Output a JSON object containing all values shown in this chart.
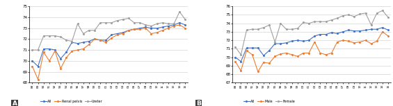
{
  "years": [
    "88",
    "89",
    "90",
    "91",
    "92",
    "93",
    "94",
    "95",
    "96",
    "97",
    "98",
    "99",
    "00",
    "01",
    "02",
    "03",
    "04",
    "05",
    "06",
    "07",
    "08",
    "09",
    "10",
    "11",
    "12",
    "13",
    "14",
    "15"
  ],
  "chart_A": {
    "All": [
      70.0,
      69.5,
      71.1,
      71.1,
      71.0,
      70.2,
      70.8,
      71.7,
      71.6,
      71.7,
      71.8,
      72.0,
      71.9,
      71.9,
      72.4,
      72.5,
      72.6,
      72.8,
      72.9,
      73.0,
      73.1,
      73.0,
      73.0,
      73.1,
      73.2,
      73.3,
      73.5,
      73.3
    ],
    "Renal_pelvis": [
      69.5,
      68.3,
      70.8,
      70.0,
      70.9,
      69.3,
      70.3,
      70.9,
      71.0,
      71.1,
      71.5,
      72.0,
      71.9,
      71.7,
      72.1,
      72.4,
      72.5,
      72.8,
      72.9,
      72.9,
      73.0,
      72.5,
      72.6,
      72.8,
      73.0,
      73.2,
      73.3,
      73.0
    ],
    "Ureter": [
      71.0,
      71.0,
      72.3,
      72.3,
      72.3,
      72.2,
      71.9,
      71.8,
      73.4,
      72.5,
      72.8,
      72.8,
      73.5,
      73.5,
      73.5,
      73.7,
      73.8,
      73.9,
      73.5,
      73.5,
      73.3,
      73.2,
      73.4,
      73.5,
      73.4,
      73.4,
      74.5,
      73.8
    ]
  },
  "chart_B": {
    "All": [
      70.0,
      69.5,
      71.1,
      71.1,
      71.1,
      70.2,
      70.8,
      71.6,
      71.6,
      71.7,
      71.9,
      72.0,
      71.9,
      72.0,
      72.5,
      72.7,
      72.7,
      72.9,
      72.8,
      73.0,
      73.2,
      73.1,
      73.1,
      73.2,
      73.3,
      73.3,
      73.5,
      73.2
    ],
    "Male": [
      69.5,
      68.4,
      70.8,
      70.3,
      68.3,
      69.4,
      69.3,
      70.1,
      70.4,
      70.5,
      70.3,
      70.1,
      70.5,
      70.5,
      71.8,
      70.5,
      70.3,
      70.5,
      71.8,
      72.0,
      71.9,
      71.7,
      71.8,
      72.0,
      71.6,
      71.9,
      73.0,
      72.5
    ],
    "Female": [
      71.2,
      70.3,
      73.2,
      73.3,
      73.3,
      73.5,
      73.8,
      71.8,
      74.0,
      73.3,
      73.3,
      73.4,
      74.1,
      74.0,
      74.2,
      74.2,
      74.2,
      74.4,
      74.6,
      74.9,
      75.0,
      74.8,
      75.1,
      75.2,
      73.8,
      75.2,
      75.5,
      74.7
    ]
  },
  "color_all": "#4472c4",
  "color_renal": "#ed7d31",
  "color_ureter": "#a0a0a0",
  "color_male": "#ed7d31",
  "color_female": "#a0a0a0",
  "ylim_A": [
    68,
    75
  ],
  "ylim_B": [
    67,
    76
  ],
  "yticks_A": [
    68,
    69,
    70,
    71,
    72,
    73,
    74,
    75
  ],
  "yticks_B": [
    67,
    68,
    69,
    70,
    71,
    72,
    73,
    74,
    75,
    76
  ]
}
